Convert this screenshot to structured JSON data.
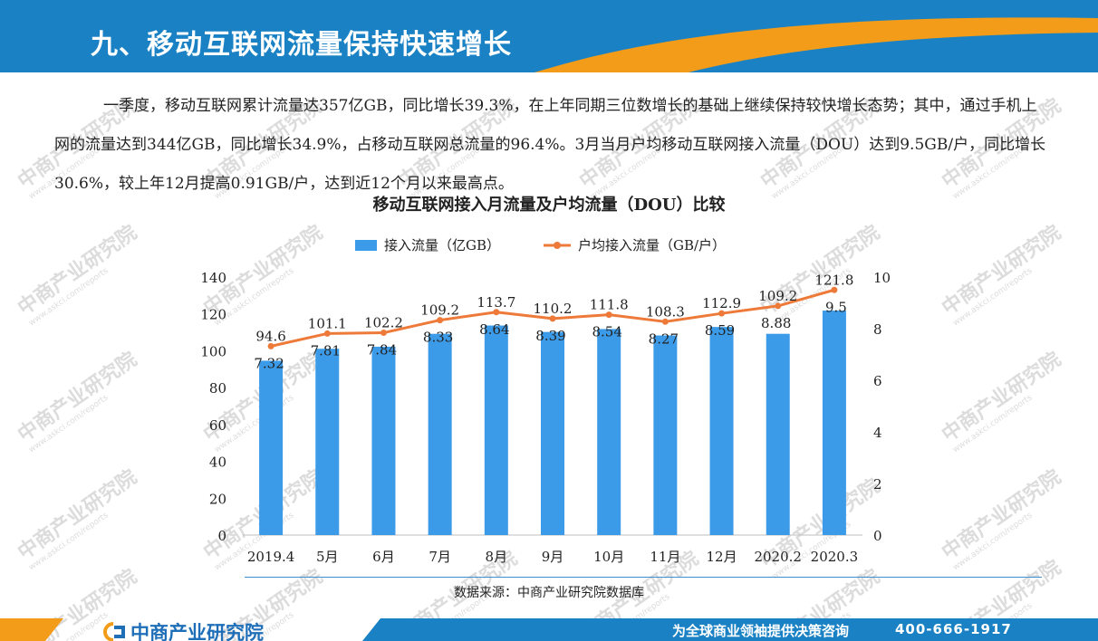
{
  "header": {
    "title": "九、移动互联网流量保持快速增长",
    "colors": {
      "primary": "#1a82c4",
      "accent": "#f39c1a"
    }
  },
  "paragraph": "一季度，移动互联网累计流量达357亿GB，同比增长39.3%，在上年同期三位数增长的基础上继续保持较快增长态势；其中，通过手机上网的流量达到344亿GB，同比增长34.9%，占移动互联网总流量的96.4%。3月当月户均移动互联网接入流量（DOU）达到9.5GB/户，同比增长30.6%，较上年12月提高0.91GB/户，达到近12个月以来最高点。",
  "watermark": {
    "text": "中商产业研究院",
    "sub": "www.askci.com/reports"
  },
  "chart_data": {
    "type": "bar",
    "title": "移动互联网接入月流量及户均流量（DOU）比较",
    "categories": [
      "2019.4",
      "5月",
      "6月",
      "7月",
      "8月",
      "9月",
      "10月",
      "11月",
      "12月",
      "2020.2",
      "2020.3"
    ],
    "series": [
      {
        "name": "接入流量（亿GB）",
        "type": "bar",
        "axis": "left",
        "color": "#3c9be8",
        "values": [
          94.6,
          101.1,
          102.2,
          109.2,
          113.7,
          110.2,
          111.8,
          108.3,
          112.9,
          109.2,
          121.8
        ]
      },
      {
        "name": "户均接入流量（GB/户）",
        "type": "line",
        "axis": "right",
        "color": "#ee7a3a",
        "values": [
          7.32,
          7.81,
          7.84,
          8.33,
          8.64,
          8.39,
          8.54,
          8.27,
          8.59,
          8.88,
          9.5
        ]
      }
    ],
    "y_left": {
      "min": 0,
      "max": 140,
      "step": 20
    },
    "y_right": {
      "min": 0,
      "max": 10,
      "step": 2
    },
    "grid": false,
    "legend_position": "top-center"
  },
  "source": "数据来源：中商产业研究院数据库",
  "footer": {
    "logo_text": "中商产业研究院",
    "slogan": "为全球商业领袖提供决策咨询",
    "phone": "400-666-1917"
  }
}
